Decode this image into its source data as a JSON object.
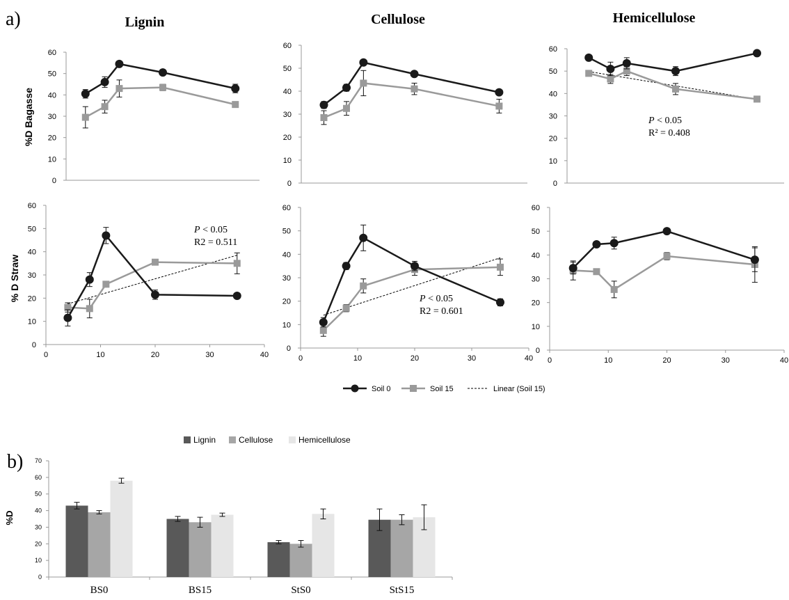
{
  "panel_labels": {
    "a": "a)",
    "b": "b)"
  },
  "row_labels": {
    "bagasse": "%D  Bagasse",
    "straw": "% D  Straw"
  },
  "legend_a": {
    "soil0": "Soil 0",
    "soil15": "Soil 15",
    "linear": "Linear (Soil 15)"
  },
  "colors": {
    "soil0": "#1a1a1a",
    "soil15": "#9a9a9a",
    "lignin": "#595959",
    "cellulose": "#a6a6a6",
    "hemicellulose": "#e6e6e6"
  },
  "chart_data": [
    {
      "id": "bag_lignin",
      "type": "line",
      "title": "Lignin",
      "ylabel": "%D  Bagasse",
      "ylim": [
        0,
        60
      ],
      "yticks": [
        "0",
        "10",
        "20",
        "30",
        "40",
        "50",
        "60"
      ],
      "x": [
        4,
        8,
        11,
        20,
        35
      ],
      "series": [
        {
          "name": "Soil 0",
          "values": [
            40.5,
            46,
            54.5,
            50.5,
            43
          ],
          "err": [
            2,
            2.5,
            1,
            1,
            2
          ]
        },
        {
          "name": "Soil 15",
          "values": [
            29.5,
            34.5,
            43,
            43.5,
            35.5
          ],
          "err": [
            5,
            3,
            4,
            1.5,
            1
          ]
        }
      ]
    },
    {
      "id": "bag_cellulose",
      "type": "line",
      "title": "Cellulose",
      "ylim": [
        0,
        60
      ],
      "yticks": [
        "0",
        "10",
        "20",
        "30",
        "40",
        "50",
        "60"
      ],
      "x": [
        4,
        8,
        11,
        20,
        35
      ],
      "series": [
        {
          "name": "Soil 0",
          "values": [
            34,
            41.5,
            52.5,
            47.5,
            39.5
          ],
          "err": [
            1.5,
            1.5,
            1,
            1,
            1
          ]
        },
        {
          "name": "Soil 15",
          "values": [
            28.5,
            32.5,
            43.5,
            41,
            33.5
          ],
          "err": [
            3,
            3,
            5.5,
            2.5,
            3
          ]
        }
      ]
    },
    {
      "id": "bag_hemicellulose",
      "type": "line",
      "title": "Hemicellulose",
      "ylim": [
        0,
        60
      ],
      "yticks": [
        "0",
        "10",
        "20",
        "30",
        "40",
        "50",
        "60"
      ],
      "x": [
        4,
        8,
        11,
        20,
        35
      ],
      "series": [
        {
          "name": "Soil 0",
          "values": [
            56,
            51,
            53.5,
            50,
            58
          ],
          "err": [
            1,
            3,
            2.5,
            2,
            1
          ]
        },
        {
          "name": "Soil 15",
          "values": [
            49,
            46.5,
            50,
            42,
            37.5
          ],
          "err": [
            1,
            2,
            2,
            2.5,
            0.5
          ]
        }
      ],
      "trend": {
        "from": [
          4,
          49.8
        ],
        "to": [
          35,
          37.4
        ]
      },
      "stat": {
        "p": "< 0.05",
        "r2": "R² = 0.408"
      }
    },
    {
      "id": "straw_lignin",
      "type": "line",
      "ylabel": "% D  Straw",
      "ylim": [
        0,
        60
      ],
      "yticks": [
        "0",
        "10",
        "20",
        "30",
        "40",
        "50",
        "60"
      ],
      "xticks": [
        "0",
        "10",
        "20",
        "30",
        "40"
      ],
      "x": [
        4,
        8,
        11,
        20,
        35
      ],
      "series": [
        {
          "name": "Soil 0",
          "values": [
            11.5,
            28,
            47,
            21.5,
            21
          ],
          "err": [
            3.5,
            3,
            3.5,
            2,
            1
          ]
        },
        {
          "name": "Soil 15",
          "values": [
            16,
            15.5,
            26,
            35.5,
            35
          ],
          "err": [
            2,
            4,
            1,
            1,
            4.5
          ]
        }
      ],
      "trend": {
        "from": [
          4,
          17.5
        ],
        "to": [
          35,
          38.5
        ]
      },
      "stat": {
        "p": "< 0.05",
        "r2": "R2 = 0.511"
      }
    },
    {
      "id": "straw_cellulose",
      "type": "line",
      "ylim": [
        0,
        60
      ],
      "yticks": [
        "0",
        "10",
        "20",
        "30",
        "40",
        "50",
        "60"
      ],
      "xticks": [
        "0",
        "10",
        "20",
        "30",
        "40"
      ],
      "x": [
        4,
        8,
        11,
        20,
        35
      ],
      "series": [
        {
          "name": "Soil 0",
          "values": [
            11,
            35,
            47,
            35,
            19.5
          ],
          "err": [
            2,
            1.5,
            5.5,
            2,
            1.5
          ]
        },
        {
          "name": "Soil 15",
          "values": [
            7.5,
            17,
            26.5,
            33.5,
            34.5
          ],
          "err": [
            2.5,
            1.5,
            3,
            2.5,
            3.5
          ]
        }
      ],
      "trend": {
        "from": [
          4,
          14
        ],
        "to": [
          35,
          38.5
        ]
      },
      "stat": {
        "p": "< 0.05",
        "r2": "R2 = 0.601"
      }
    },
    {
      "id": "straw_hemicellulose",
      "type": "line",
      "ylim": [
        0,
        60
      ],
      "yticks": [
        "0",
        "10",
        "20",
        "30",
        "40",
        "50",
        "60"
      ],
      "xticks": [
        "0",
        "10",
        "20",
        "30",
        "40"
      ],
      "x": [
        4,
        8,
        11,
        20,
        35
      ],
      "series": [
        {
          "name": "Soil 0",
          "values": [
            34.5,
            44.5,
            45,
            50,
            38
          ],
          "err": [
            2.5,
            1,
            2.5,
            1,
            5
          ]
        },
        {
          "name": "Soil 15",
          "values": [
            33.5,
            33,
            25.5,
            39.5,
            36
          ],
          "err": [
            4,
            1,
            3.5,
            1.5,
            7.5
          ]
        }
      ]
    },
    {
      "id": "bars",
      "type": "bar",
      "ylabel": "%D",
      "ylim": [
        0,
        70
      ],
      "yticks": [
        "0",
        "10",
        "20",
        "30",
        "40",
        "50",
        "60",
        "70"
      ],
      "categories": [
        "BS0",
        "BS15",
        "StS0",
        "StS15"
      ],
      "series": [
        {
          "name": "Lignin",
          "values": [
            43,
            35,
            21,
            34.5
          ],
          "err": [
            2,
            1.5,
            1,
            6.5
          ]
        },
        {
          "name": "Cellulose",
          "values": [
            39,
            33,
            20,
            34.5
          ],
          "err": [
            1,
            3,
            2,
            3
          ]
        },
        {
          "name": "Hemicellulose",
          "values": [
            58,
            37.5,
            38,
            36
          ],
          "err": [
            1.5,
            1,
            3,
            7.5
          ]
        }
      ]
    }
  ]
}
